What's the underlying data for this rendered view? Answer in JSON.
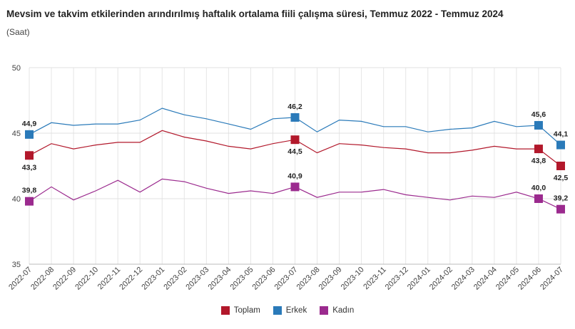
{
  "title": "Mevsim ve takvim etkilerinden arındırılmış haftalık ortalama fiili çalışma süresi, Temmuz 2022 - Temmuz 2024",
  "subtitle": "(Saat)",
  "chart_data": {
    "type": "line",
    "title": "Mevsim ve takvim etkilerinden arındırılmış haftalık ortalama fiili çalışma süresi, Temmuz 2022 - Temmuz 2024",
    "ylabel": "(Saat)",
    "xlabel": "",
    "ylim": [
      35,
      50
    ],
    "yticks": [
      35,
      40,
      45,
      50
    ],
    "grid": true,
    "legend_position": "bottom",
    "categories": [
      "2022-07",
      "2022-08",
      "2022-09",
      "2022-10",
      "2022-11",
      "2022-12",
      "2023-01",
      "2023-02",
      "2023-03",
      "2023-04",
      "2023-05",
      "2023-06",
      "2023-07",
      "2023-08",
      "2023-09",
      "2023-10",
      "2023-11",
      "2023-12",
      "2024-01",
      "2024-02",
      "2024-03",
      "2024-04",
      "2024-05",
      "2024-06",
      "2024-07"
    ],
    "series": [
      {
        "name": "Toplam",
        "color": "#b2182b",
        "values": [
          43.3,
          44.2,
          43.8,
          44.1,
          44.3,
          44.3,
          45.2,
          44.7,
          44.4,
          44.0,
          43.8,
          44.2,
          44.5,
          43.5,
          44.2,
          44.1,
          43.9,
          43.8,
          43.5,
          43.5,
          43.7,
          44.0,
          43.8,
          43.8,
          42.5
        ],
        "markers": [
          {
            "index": 0,
            "label": "43,3",
            "pos": "below"
          },
          {
            "index": 12,
            "label": "44,5",
            "pos": "below"
          },
          {
            "index": 23,
            "label": "43,8",
            "pos": "below"
          },
          {
            "index": 24,
            "label": "42,5",
            "pos": "below"
          }
        ]
      },
      {
        "name": "Erkek",
        "color": "#2a7ab9",
        "values": [
          44.9,
          45.8,
          45.6,
          45.7,
          45.7,
          46.0,
          46.9,
          46.4,
          46.1,
          45.7,
          45.3,
          46.1,
          46.2,
          45.1,
          46.0,
          45.9,
          45.5,
          45.5,
          45.1,
          45.3,
          45.4,
          45.9,
          45.5,
          45.6,
          44.1
        ],
        "markers": [
          {
            "index": 0,
            "label": "44,9",
            "pos": "above"
          },
          {
            "index": 12,
            "label": "46,2",
            "pos": "above"
          },
          {
            "index": 23,
            "label": "45,6",
            "pos": "above"
          },
          {
            "index": 24,
            "label": "44,1",
            "pos": "above"
          }
        ]
      },
      {
        "name": "Kadın",
        "color": "#9b2a8e",
        "values": [
          39.8,
          40.9,
          39.9,
          40.6,
          41.4,
          40.5,
          41.5,
          41.3,
          40.8,
          40.4,
          40.6,
          40.4,
          40.9,
          40.1,
          40.5,
          40.5,
          40.7,
          40.3,
          40.1,
          39.9,
          40.2,
          40.1,
          40.5,
          40.0,
          39.2
        ],
        "markers": [
          {
            "index": 0,
            "label": "39,8",
            "pos": "above"
          },
          {
            "index": 12,
            "label": "40,9",
            "pos": "above"
          },
          {
            "index": 23,
            "label": "40,0",
            "pos": "above"
          },
          {
            "index": 24,
            "label": "39,2",
            "pos": "above"
          }
        ]
      }
    ]
  }
}
